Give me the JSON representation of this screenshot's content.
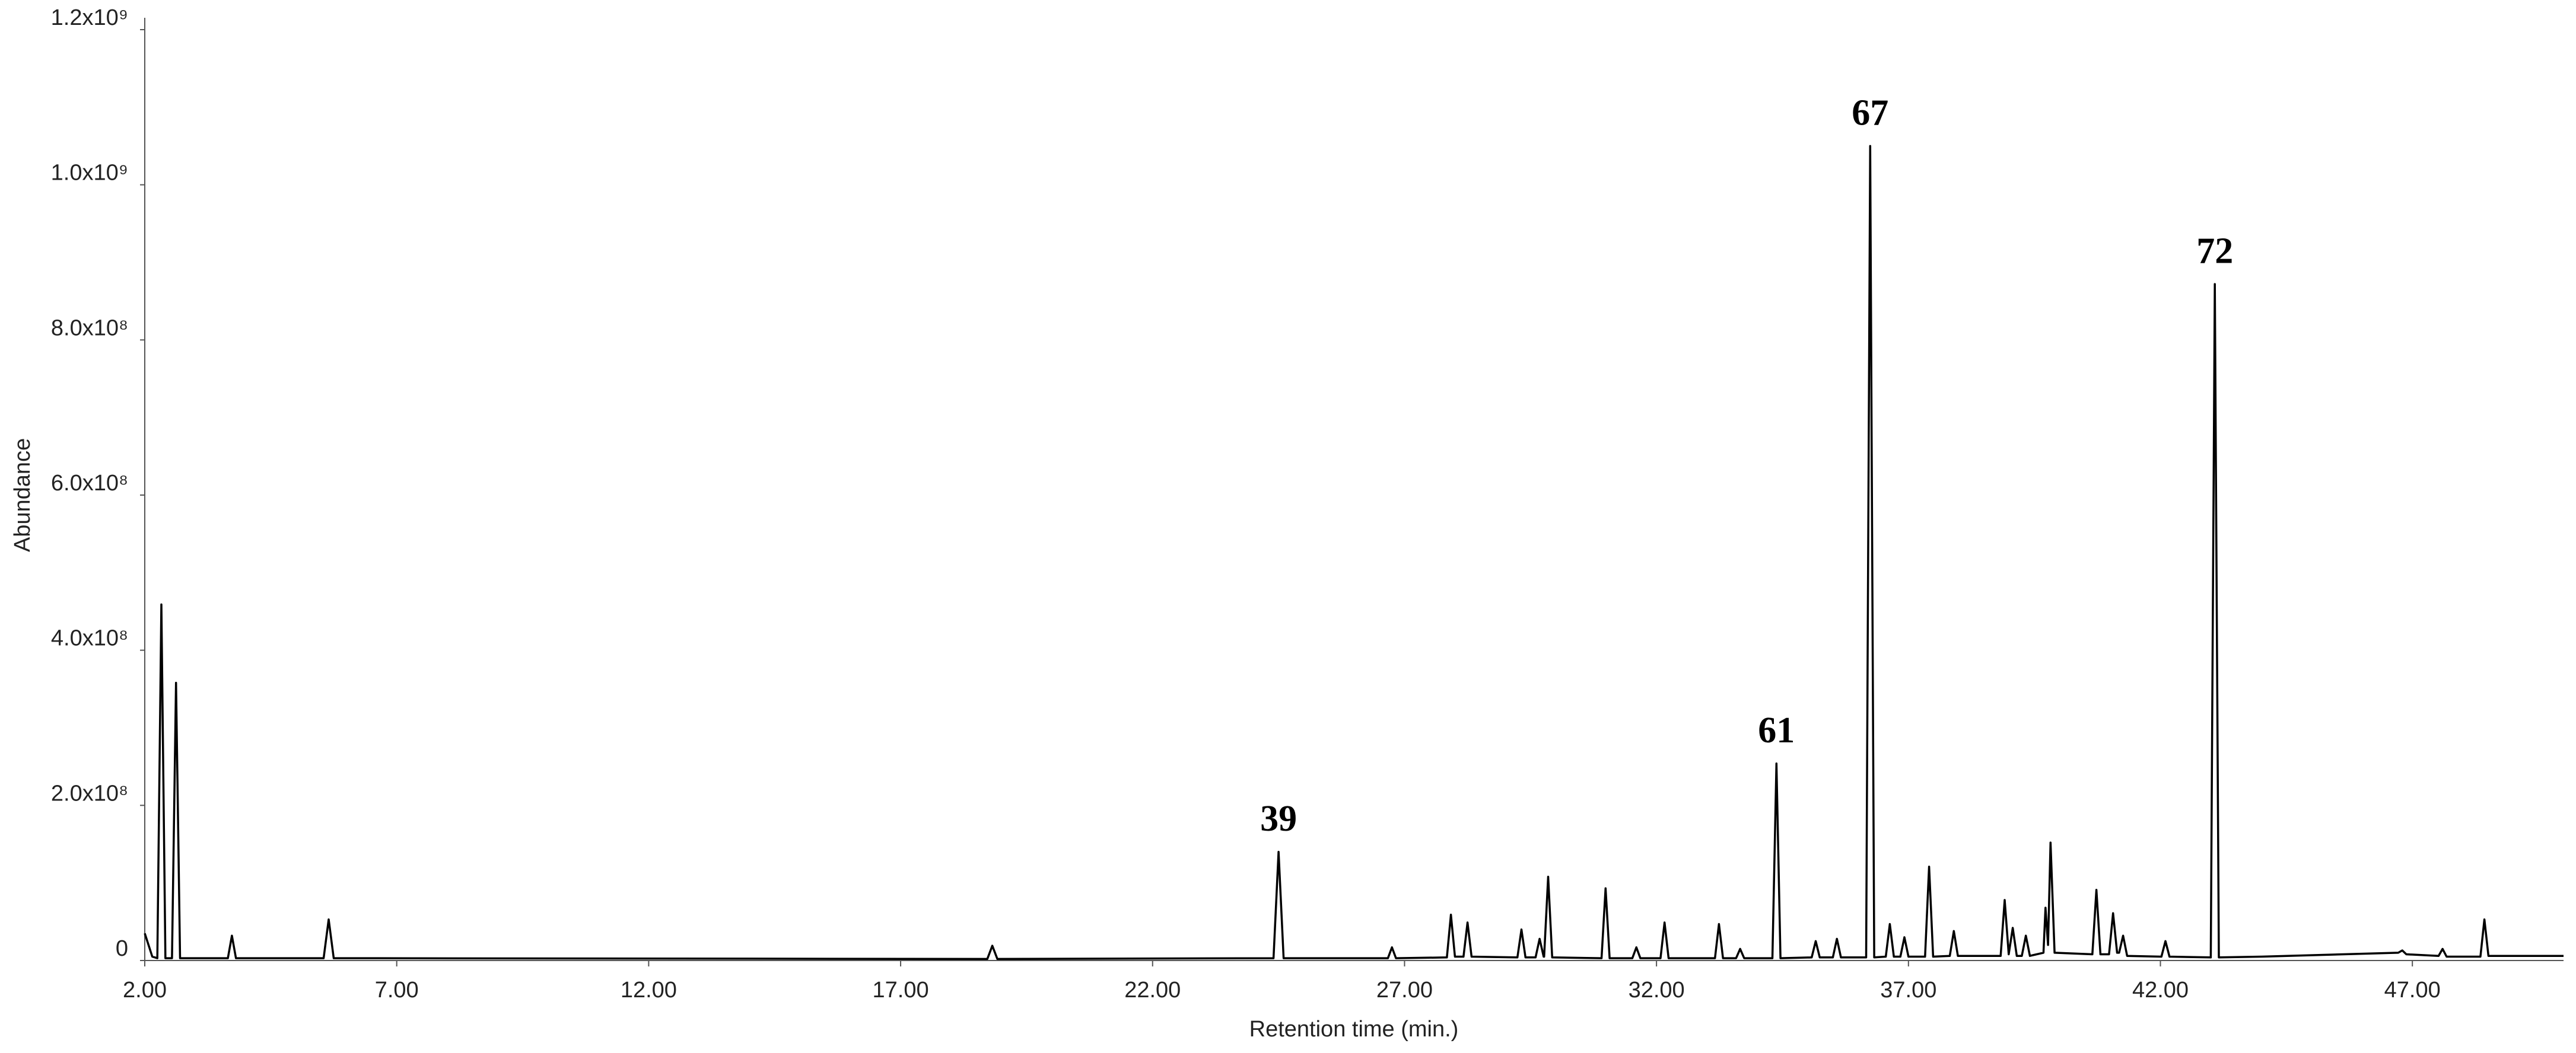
{
  "chart_data": {
    "type": "line",
    "xlabel": "Retention time (min.)",
    "ylabel": "Abundance",
    "xlim": [
      2,
      50
    ],
    "ylim": [
      0,
      1200000000
    ],
    "xticks": [
      {
        "value": 2,
        "label": "2.00"
      },
      {
        "value": 7,
        "label": "7.00"
      },
      {
        "value": 12,
        "label": "12.00"
      },
      {
        "value": 17,
        "label": "17.00"
      },
      {
        "value": 22,
        "label": "22.00"
      },
      {
        "value": 27,
        "label": "27.00"
      },
      {
        "value": 32,
        "label": "32.00"
      },
      {
        "value": 37,
        "label": "37.00"
      },
      {
        "value": 42,
        "label": "42.00"
      },
      {
        "value": 47,
        "label": "47.00"
      }
    ],
    "yticks": [
      0,
      {
        "value": 200000000,
        "label": "2.0x10⁸"
      },
      {
        "value": 400000000,
        "label": "4.0x10⁸"
      },
      {
        "value": 600000000,
        "label": "6.0x10⁸"
      },
      {
        "value": 800000000,
        "label": "8.0x10⁸"
      },
      {
        "value": 1000000000,
        "label": "1.0x10⁹"
      },
      {
        "value": 1200000000,
        "label": "1.2x10⁹"
      }
    ],
    "grid": false,
    "x": [
      2.0,
      2.15,
      2.25,
      2.33,
      2.41,
      2.54,
      2.62,
      2.7,
      3.65,
      3.73,
      3.81,
      5.55,
      5.65,
      5.75,
      18.72,
      18.82,
      18.92,
      24.4,
      24.5,
      24.6,
      26.67,
      26.75,
      26.83,
      27.84,
      27.92,
      28.0,
      28.17,
      28.25,
      28.33,
      29.24,
      29.32,
      29.4,
      29.6,
      29.68,
      29.76,
      29.77,
      29.85,
      29.93,
      30.91,
      30.99,
      31.07,
      31.52,
      31.6,
      31.68,
      32.08,
      32.16,
      32.24,
      33.16,
      33.24,
      33.32,
      33.58,
      33.66,
      33.74,
      34.3,
      34.38,
      34.46,
      35.08,
      35.16,
      35.24,
      35.5,
      35.58,
      35.66,
      36.16,
      36.24,
      36.32,
      36.55,
      36.63,
      36.71,
      36.84,
      36.92,
      37.0,
      37.33,
      37.41,
      37.49,
      37.82,
      37.9,
      37.98,
      38.83,
      38.91,
      38.99,
      39.07,
      39.15,
      39.25,
      39.33,
      39.41,
      39.68,
      39.72,
      39.77,
      39.82,
      39.9,
      40.65,
      40.73,
      40.81,
      40.98,
      41.06,
      41.14,
      41.18,
      41.26,
      41.34,
      42.02,
      42.1,
      42.18,
      43.0,
      43.08,
      43.16,
      44.0,
      46.72,
      46.8,
      46.88,
      47.52,
      47.6,
      47.68,
      48.35,
      48.43,
      48.51,
      50.0
    ],
    "series": [
      {
        "color": "#000000",
        "values": [
          35000000,
          5000000,
          3000000,
          459000000,
          3000000,
          3000000,
          358000000,
          3000000,
          3000000,
          32000000,
          3000000,
          3000000,
          53000000,
          3000000,
          2000000,
          19000000,
          2000000,
          3000000,
          140000000,
          3000000,
          3000000,
          17000000,
          3000000,
          4000000,
          59000000,
          5000000,
          5000000,
          49000000,
          5000000,
          4000000,
          40000000,
          4000000,
          4000000,
          28000000,
          5000000,
          5000000,
          108000000,
          4000000,
          3000000,
          93000000,
          3000000,
          3000000,
          17000000,
          3000000,
          3000000,
          49000000,
          3000000,
          3000000,
          47000000,
          3000000,
          3000000,
          15000000,
          3000000,
          3000000,
          254000000,
          3000000,
          4000000,
          25000000,
          4000000,
          4000000,
          28000000,
          4000000,
          4000000,
          1050000000,
          4000000,
          5000000,
          47000000,
          5000000,
          5000000,
          30000000,
          5000000,
          5000000,
          121000000,
          5000000,
          6000000,
          38000000,
          6000000,
          6000000,
          78000000,
          8000000,
          42000000,
          6000000,
          6000000,
          32000000,
          6000000,
          10000000,
          68000000,
          20000000,
          152000000,
          10000000,
          8000000,
          91000000,
          8000000,
          8000000,
          61000000,
          10000000,
          10000000,
          32000000,
          6000000,
          5000000,
          25000000,
          5000000,
          4000000,
          872000000,
          4000000,
          5000000,
          10000000,
          13000000,
          8000000,
          6000000,
          15000000,
          5000000,
          5000000,
          53000000,
          6000000,
          6000000
        ]
      }
    ],
    "annotations": [
      {
        "text": "39",
        "x": 24.5,
        "y": 140000000
      },
      {
        "text": "61",
        "x": 34.38,
        "y": 254000000
      },
      {
        "text": "67",
        "x": 36.24,
        "y": 1050000000
      },
      {
        "text": "72",
        "x": 43.08,
        "y": 872000000
      }
    ]
  }
}
